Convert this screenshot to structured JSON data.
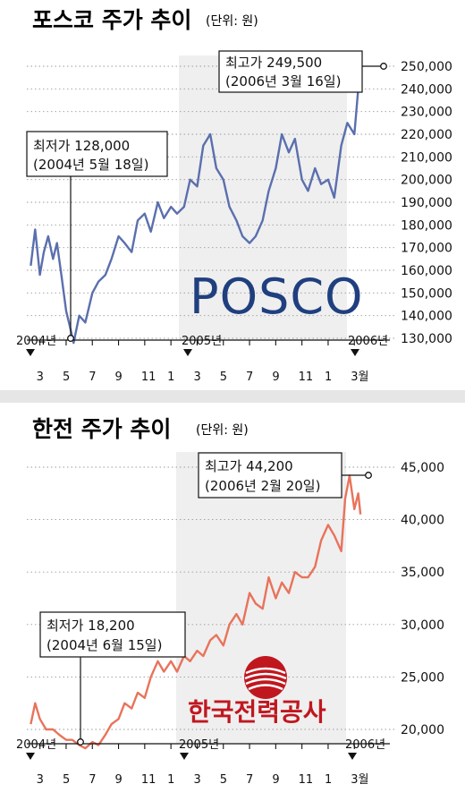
{
  "colors": {
    "posco_line": "#5b6fae",
    "kepco_line": "#e8735b",
    "grid": "#9a9a9a",
    "band": "#efefef",
    "logo_posco": "#1f3f7f",
    "logo_kepco": "#c0171f"
  },
  "posco": {
    "title": "포스코 주가 추이",
    "unit": "(단위: 원)",
    "logo": "POSCO",
    "high_label": "최고가 249,500",
    "high_date": "(2006년 3월 16일)",
    "low_label": "최저가 128,000",
    "low_date": "(2004년 5월 18일)",
    "years": [
      "2004년",
      "2005년",
      "2006년"
    ],
    "month_ticks": [
      "3",
      "5",
      "7",
      "9",
      "11",
      "1",
      "3",
      "5",
      "7",
      "9",
      "11",
      "1",
      "3월"
    ]
  },
  "kepco": {
    "title": "한전 주가 추이",
    "unit": "(단위: 원)",
    "logo": "한국전력공사",
    "high_label": "최고가 44,200",
    "high_date": "(2006년 2월 20일)",
    "low_label": "최저가 18,200",
    "low_date": "(2004년 6월 15일)",
    "years": [
      "2004년",
      "2005년",
      "2006년"
    ],
    "month_ticks": [
      "3",
      "5",
      "7",
      "9",
      "11",
      "1",
      "3",
      "5",
      "7",
      "9",
      "11",
      "1",
      "3월"
    ]
  },
  "chart_data": [
    {
      "type": "line",
      "title": "포스코 주가 추이",
      "unit": "원",
      "x_start": "2004-02",
      "x_end": "2006-03",
      "ylim": [
        130000,
        250000
      ],
      "yticks": [
        "250,000",
        "240,000",
        "230,000",
        "220,000",
        "210,000",
        "200,000",
        "190,000",
        "180,000",
        "170,000",
        "160,000",
        "150,000",
        "140,000",
        "130,000"
      ],
      "series": [
        {
          "x": [
            "2004-02-10",
            "2004-02-20",
            "2004-03-01",
            "2004-03-10",
            "2004-03-20",
            "2004-04-01",
            "2004-04-10",
            "2004-04-20",
            "2004-05-01",
            "2004-05-10",
            "2004-05-18",
            "2004-06-01",
            "2004-06-15",
            "2004-07-01",
            "2004-07-15",
            "2004-08-01",
            "2004-08-15",
            "2004-09-01",
            "2004-09-15",
            "2004-10-01",
            "2004-10-15",
            "2004-11-01",
            "2004-11-15",
            "2004-12-01",
            "2004-12-15",
            "2005-01-01",
            "2005-01-15",
            "2005-02-01",
            "2005-02-15",
            "2005-03-01",
            "2005-03-15",
            "2005-04-01",
            "2005-04-15",
            "2005-05-01",
            "2005-05-15",
            "2005-06-01",
            "2005-06-15",
            "2005-07-01",
            "2005-07-15",
            "2005-08-01",
            "2005-08-15",
            "2005-09-01",
            "2005-09-15",
            "2005-10-01",
            "2005-10-15",
            "2005-11-01",
            "2005-11-15",
            "2005-12-01",
            "2005-12-15",
            "2006-01-01",
            "2006-01-15",
            "2006-02-01",
            "2006-02-15",
            "2006-03-01",
            "2006-03-10",
            "2006-03-16"
          ],
          "values": [
            162000,
            178000,
            158000,
            168000,
            175000,
            165000,
            172000,
            158000,
            142000,
            135000,
            128000,
            140000,
            137000,
            150000,
            155000,
            158000,
            165000,
            175000,
            172000,
            168000,
            182000,
            185000,
            177000,
            190000,
            183000,
            188000,
            185000,
            188000,
            200000,
            197000,
            215000,
            220000,
            205000,
            200000,
            188000,
            182000,
            175000,
            172000,
            175000,
            182000,
            195000,
            205000,
            220000,
            212000,
            218000,
            200000,
            195000,
            205000,
            198000,
            200000,
            192000,
            215000,
            225000,
            220000,
            240000,
            249500
          ]
        }
      ]
    },
    {
      "type": "line",
      "title": "한전 주가 추이",
      "unit": "원",
      "x_start": "2004-02",
      "x_end": "2006-03",
      "ylim": [
        20000,
        45000
      ],
      "yticks": [
        "45,000",
        "40,000",
        "35,000",
        "30,000",
        "25,000",
        "20,000"
      ],
      "series": [
        {
          "x": [
            "2004-02-10",
            "2004-02-20",
            "2004-03-01",
            "2004-03-15",
            "2004-04-01",
            "2004-04-15",
            "2004-05-01",
            "2004-05-15",
            "2004-06-01",
            "2004-06-15",
            "2004-07-01",
            "2004-07-15",
            "2004-08-01",
            "2004-08-15",
            "2004-09-01",
            "2004-09-15",
            "2004-10-01",
            "2004-10-15",
            "2004-11-01",
            "2004-11-15",
            "2004-12-01",
            "2004-12-15",
            "2005-01-01",
            "2005-01-15",
            "2005-02-01",
            "2005-02-15",
            "2005-03-01",
            "2005-03-15",
            "2005-04-01",
            "2005-04-15",
            "2005-05-01",
            "2005-05-15",
            "2005-06-01",
            "2005-06-15",
            "2005-07-01",
            "2005-07-15",
            "2005-08-01",
            "2005-08-15",
            "2005-09-01",
            "2005-09-15",
            "2005-10-01",
            "2005-10-15",
            "2005-11-01",
            "2005-11-15",
            "2005-12-01",
            "2005-12-15",
            "2006-01-01",
            "2006-01-15",
            "2006-02-01",
            "2006-02-10",
            "2006-02-20",
            "2006-03-01",
            "2006-03-10",
            "2006-03-15"
          ],
          "values": [
            20500,
            22500,
            21000,
            20000,
            20000,
            19500,
            19000,
            19000,
            18500,
            18200,
            18800,
            18500,
            19500,
            20500,
            21000,
            22500,
            22000,
            23500,
            23000,
            25000,
            26500,
            25500,
            26500,
            25500,
            27000,
            26500,
            27500,
            27000,
            28500,
            29000,
            28000,
            30000,
            31000,
            30000,
            33000,
            32000,
            31500,
            34500,
            32500,
            34000,
            33000,
            35000,
            34500,
            34500,
            35500,
            38000,
            39500,
            38500,
            37000,
            42000,
            44200,
            41000,
            42500,
            40500
          ]
        }
      ]
    }
  ]
}
